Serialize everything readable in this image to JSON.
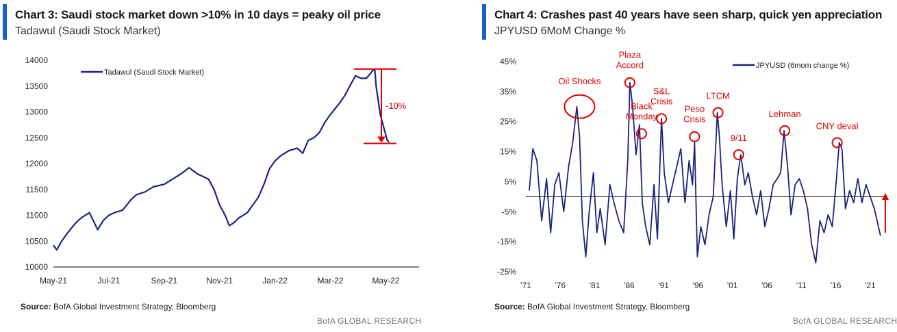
{
  "chart_data": [
    {
      "type": "line",
      "title": "Chart 3: Saudi stock market down >10% in 10 days = peaky oil price",
      "subtitle": "Tadawul (Saudi Stock Market)",
      "legend": "Tadawul (Saudi Stock Market)",
      "ylim": [
        10000,
        14000
      ],
      "yticks": [
        10000,
        10500,
        11000,
        11500,
        12000,
        12500,
        13000,
        13500,
        14000
      ],
      "xlim": [
        0,
        13.2
      ],
      "xtick_labels": [
        "May-21",
        "Jul-21",
        "Sep-21",
        "Nov-21",
        "Jan-22",
        "Mar-22",
        "May-22"
      ],
      "xtick_positions": [
        0,
        2,
        4,
        6,
        8,
        10,
        12
      ],
      "series": [
        {
          "name": "Tadawul (Saudi Stock Market)",
          "color": "#1a237e",
          "x": [
            0.0,
            0.12,
            0.3,
            0.5,
            0.8,
            1.0,
            1.3,
            1.6,
            1.8,
            2.0,
            2.2,
            2.5,
            2.8,
            3.0,
            3.3,
            3.6,
            4.0,
            4.3,
            4.6,
            4.9,
            5.2,
            5.4,
            5.6,
            5.8,
            6.0,
            6.2,
            6.35,
            6.5,
            6.7,
            7.0,
            7.2,
            7.4,
            7.6,
            7.8,
            8.0,
            8.2,
            8.5,
            8.8,
            9.0,
            9.2,
            9.4,
            9.6,
            9.8,
            10.0,
            10.3,
            10.5,
            10.7,
            10.9,
            11.1,
            11.3,
            11.5,
            11.6,
            11.65,
            11.8,
            11.95,
            12.05,
            12.12
          ],
          "values": [
            10420,
            10330,
            10500,
            10650,
            10850,
            10950,
            11050,
            10720,
            10900,
            11000,
            11050,
            11100,
            11300,
            11400,
            11450,
            11550,
            11600,
            11700,
            11800,
            11920,
            11800,
            11750,
            11700,
            11500,
            11200,
            11000,
            10800,
            10850,
            10950,
            11050,
            11200,
            11350,
            11600,
            11900,
            12050,
            12150,
            12250,
            12300,
            12200,
            12450,
            12500,
            12600,
            12800,
            12950,
            13150,
            13300,
            13500,
            13700,
            13650,
            13650,
            13780,
            13830,
            13500,
            12950,
            12650,
            12450,
            12420
          ]
        }
      ],
      "annotations": [
        {
          "text": "-10%",
          "from": 13830,
          "to": 12390
        }
      ]
    },
    {
      "type": "line",
      "title": "Chart 4: Crashes past 40 years have seen sharp, quick yen appreciation",
      "subtitle": "JPYUSD 6MoM Change %",
      "legend": "JPYUSD (6mom change %)",
      "ylim": [
        -25,
        45
      ],
      "ytick_labels": [
        "-25%",
        "-15%",
        "-5%",
        "5%",
        "15%",
        "25%",
        "35%",
        "45%"
      ],
      "yticks": [
        -25,
        -15,
        -5,
        5,
        15,
        25,
        35,
        45
      ],
      "xlim": [
        1971,
        2023.5
      ],
      "xtick_labels": [
        "'71",
        "'76",
        "'81",
        "'86",
        "'91",
        "'96",
        "'01",
        "'06",
        "'11",
        "'16",
        "'21"
      ],
      "xtick_positions": [
        1971,
        1976,
        1981,
        1986,
        1991,
        1996,
        2001,
        2006,
        2011,
        2016,
        2021
      ],
      "series": [
        {
          "name": "JPYUSD (6mom change %)",
          "color": "#1a237e",
          "x": [
            1971.5,
            1972.0,
            1972.6,
            1973.3,
            1974.0,
            1974.6,
            1975.2,
            1975.8,
            1976.5,
            1977.2,
            1977.8,
            1978.4,
            1978.8,
            1979.2,
            1979.7,
            1980.2,
            1980.8,
            1981.3,
            1981.8,
            1982.5,
            1983.2,
            1983.8,
            1984.5,
            1985.2,
            1985.8,
            1986.1,
            1986.5,
            1987.0,
            1987.5,
            1987.9,
            1988.4,
            1989.0,
            1989.6,
            1990.1,
            1990.7,
            1991.1,
            1991.7,
            1992.3,
            1992.9,
            1993.5,
            1994.1,
            1994.7,
            1995.2,
            1995.5,
            1995.9,
            1996.4,
            1997.0,
            1997.6,
            1998.2,
            1998.8,
            1999.1,
            1999.5,
            2000.1,
            2000.7,
            2001.2,
            2001.7,
            2002.2,
            2002.8,
            2003.3,
            2003.9,
            2004.5,
            2005.1,
            2005.7,
            2006.3,
            2006.9,
            2007.5,
            2008.0,
            2008.5,
            2009.0,
            2009.5,
            2010.1,
            2010.7,
            2011.3,
            2011.9,
            2012.5,
            2013.1,
            2013.7,
            2014.3,
            2014.9,
            2015.5,
            2016.1,
            2016.5,
            2016.9,
            2017.4,
            2018.0,
            2018.6,
            2019.2,
            2019.8,
            2020.4,
            2021.0,
            2021.6,
            2022.2,
            2022.5
          ],
          "values": [
            2,
            16,
            12,
            -8,
            6,
            -12,
            4,
            8,
            -5,
            10,
            18,
            30,
            20,
            -8,
            -20,
            -5,
            8,
            -12,
            -4,
            -16,
            4,
            -2,
            -8,
            -12,
            12,
            38,
            30,
            14,
            24,
            -2,
            -10,
            -16,
            4,
            -14,
            26,
            8,
            -2,
            4,
            10,
            16,
            -2,
            12,
            4,
            18,
            -20,
            -10,
            -16,
            -6,
            0,
            28,
            20,
            4,
            -10,
            2,
            -14,
            6,
            14,
            4,
            8,
            0,
            -6,
            2,
            -10,
            -4,
            4,
            6,
            8,
            22,
            10,
            -6,
            4,
            6,
            2,
            -4,
            -16,
            -22,
            -8,
            -12,
            -6,
            -10,
            6,
            18,
            16,
            -4,
            2,
            -2,
            6,
            -2,
            4,
            0,
            -4,
            -10,
            -13
          ]
        }
      ],
      "annotations": [
        {
          "text": "Oil Shocks",
          "year": 1978.8,
          "value": 30
        },
        {
          "text": "Plaza Accord",
          "year": 1986.1,
          "value": 38
        },
        {
          "text": "Black Monday",
          "year": 1987.8,
          "value": 21
        },
        {
          "text": "S&L Crisis",
          "year": 1990.7,
          "value": 26
        },
        {
          "text": "Peso Crisis",
          "year": 1995.5,
          "value": 20
        },
        {
          "text": "LTCM",
          "year": 1998.9,
          "value": 28
        },
        {
          "text": "9/11",
          "year": 2001.9,
          "value": 14
        },
        {
          "text": "Lehman",
          "year": 2008.6,
          "value": 22
        },
        {
          "text": "CNY deval",
          "year": 2016.2,
          "value": 18
        }
      ]
    }
  ],
  "left": {
    "source_label": "Source:",
    "source_text": "BofA Global Investment Strategy, Bloomberg",
    "credit": "BofA GLOBAL RESEARCH"
  },
  "right": {
    "source_label": "Source:",
    "source_text": "BofA Global Investment Strategy, Bloomberg",
    "credit": "BofA GLOBAL RESEARCH"
  },
  "colors": {
    "accent": "#1565c0",
    "line": "#1a237e",
    "annotation": "#e00000"
  }
}
